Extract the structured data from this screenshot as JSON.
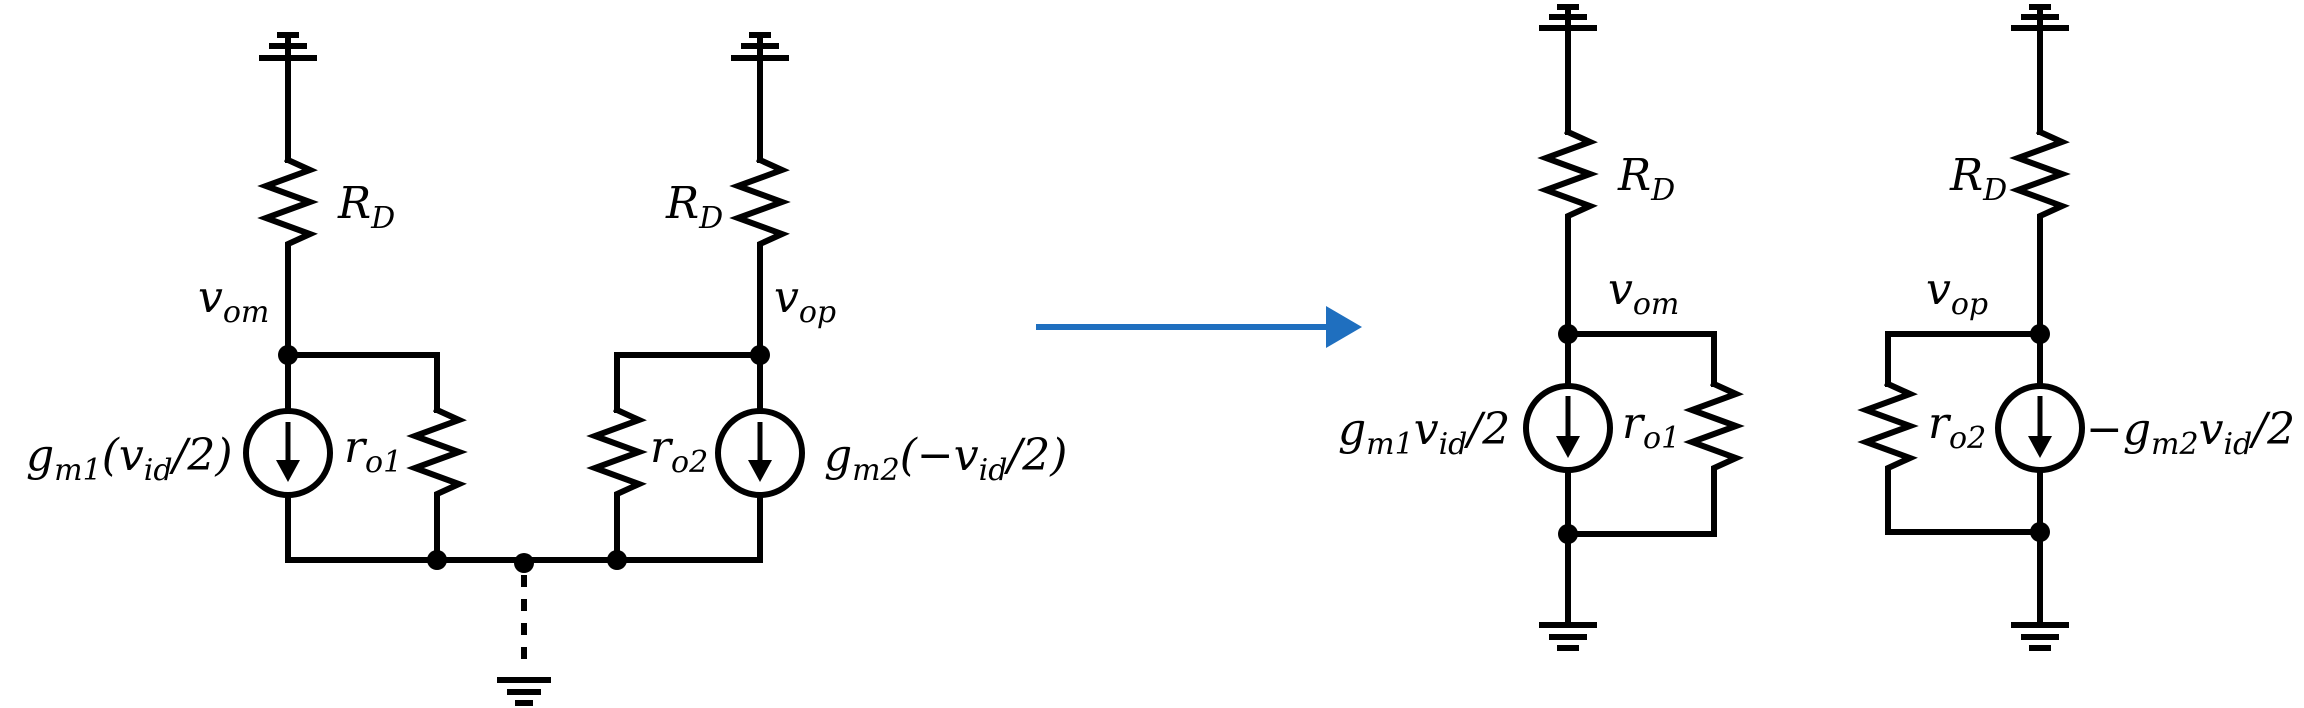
{
  "colors": {
    "wire": "#000000",
    "arrow": "#1f6fbf"
  },
  "left_circuit": {
    "rd_left": {
      "main": "R",
      "sub": "D"
    },
    "rd_right": {
      "main": "R",
      "sub": "D"
    },
    "vom": {
      "main": "v",
      "sub": "om"
    },
    "vop": {
      "main": "v",
      "sub": "op"
    },
    "ro1": {
      "main": "r",
      "sub": "o1"
    },
    "ro2": {
      "main": "r",
      "sub": "o2"
    },
    "gm1": {
      "g": "g",
      "gsub": "m1",
      "open": "(v",
      "vsub": "id",
      "close": "/2)"
    },
    "gm2": {
      "g": "g",
      "gsub": "m2",
      "open": "(−v",
      "vsub": "id",
      "close": "/2)"
    }
  },
  "right_circuits": {
    "rd1": {
      "main": "R",
      "sub": "D"
    },
    "rd2": {
      "main": "R",
      "sub": "D"
    },
    "vom": {
      "main": "v",
      "sub": "om"
    },
    "vop": {
      "main": "v",
      "sub": "op"
    },
    "ro1": {
      "main": "r",
      "sub": "o1"
    },
    "ro2": {
      "main": "r",
      "sub": "o2"
    },
    "gm1": {
      "g": "g",
      "gsub": "m1",
      "v": "v",
      "vsub": "id",
      "tail": "/2"
    },
    "gm2": {
      "g": "−g",
      "gsub": "m2",
      "v": "v",
      "vsub": "id",
      "tail": "/2"
    }
  }
}
